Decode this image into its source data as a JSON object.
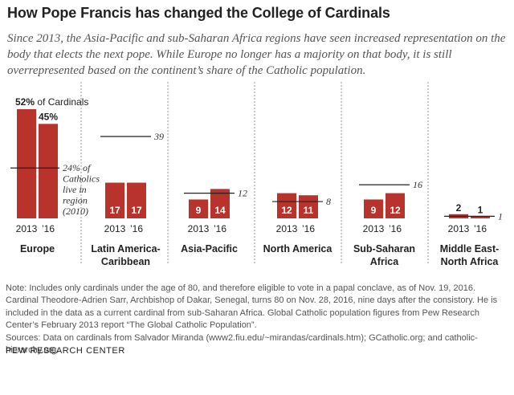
{
  "title": "How Pope Francis has changed the College of Cardinals",
  "subtitle": "Since 2013, the Asia-Pacific and sub-Saharan Africa regions have seen increased representation on the body that elects the next pope. While Europe no longer has a majority on that body, it is still overrepresented based on the continent’s share of the Catholic population.",
  "chart_data": {
    "type": "bar",
    "categories": [
      "2013",
      "’16"
    ],
    "regions": [
      {
        "name": "Europe",
        "values": [
          52,
          45
        ],
        "value_labels": [
          "52% of Cardinals",
          "45%"
        ],
        "catholic_share": 24,
        "share_annotation": [
          "24% of",
          "Catholics",
          "live in",
          "region",
          "(2010)"
        ]
      },
      {
        "name": "Latin America-Caribbean",
        "name_lines": [
          "Latin America-",
          "Caribbean"
        ],
        "values": [
          17,
          17
        ],
        "value_labels": [
          "17",
          "17"
        ],
        "catholic_share": 39,
        "share_annotation": [
          "39"
        ]
      },
      {
        "name": "Asia-Pacific",
        "values": [
          9,
          14
        ],
        "value_labels": [
          "9",
          "14"
        ],
        "catholic_share": 12,
        "share_annotation": [
          "12"
        ]
      },
      {
        "name": "North America",
        "values": [
          12,
          11
        ],
        "value_labels": [
          "12",
          "11"
        ],
        "catholic_share": 8,
        "share_annotation": [
          "8"
        ]
      },
      {
        "name": "Sub-Saharan Africa",
        "name_lines": [
          "Sub-Saharan",
          "Africa"
        ],
        "values": [
          9,
          12
        ],
        "value_labels": [
          "9",
          "12"
        ],
        "catholic_share": 16,
        "share_annotation": [
          "16"
        ]
      },
      {
        "name": "Middle East-North Africa",
        "name_lines": [
          "Middle East-",
          "North Africa"
        ],
        "values": [
          2,
          1
        ],
        "value_labels": [
          "2",
          "1"
        ],
        "catholic_share": 1,
        "share_annotation": [
          "1"
        ]
      }
    ],
    "ylim": [
      0,
      52
    ],
    "bar_color": "#b7332b",
    "reference_line_color": "#222222",
    "grid": false
  },
  "notes": {
    "note": "Note: Includes only cardinals under the age of 80, and therefore eligible to vote in a papal conclave, as of Nov. 19, 2016. Cardinal Theodore-Adrien Sarr, Archbishop of Dakar, Senegal, turns 80 on Nov. 28, 2016, nine days after the consistory. He is included in the data as a current cardinal from sub-Saharan Africa. Global Catholic population figures from Pew Research Center’s February 2013 report “The Global Catholic Population”.",
    "source": "Sources: Data on cardinals from Salvador Miranda (www2.fiu.edu/~mirandas/cardinals.htm); GCatholic.org; and catholic-hierarchy.org."
  },
  "brand": "PEW RESEARCH CENTER"
}
